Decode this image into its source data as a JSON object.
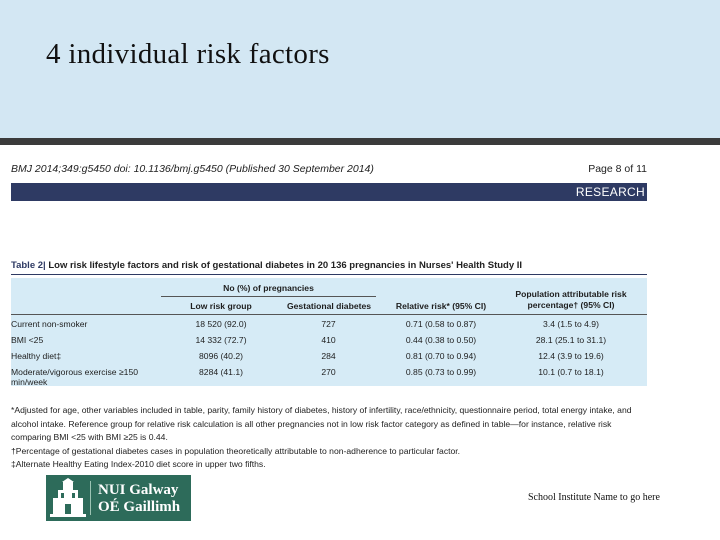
{
  "slide": {
    "title": "4 individual risk factors",
    "institute": "School Institute Name to go here"
  },
  "colors": {
    "title_band": "#d3e7f3",
    "table_band": "#d6ebf6",
    "research_bar": "#2e3a63",
    "logo_green": "#2d6b5a"
  },
  "doc": {
    "citation": "BMJ 2014;349:g5450 doi: 10.1136/bmj.g5450 (Published 30 September 2014)",
    "page": "Page 8 of 11",
    "section": "RESEARCH"
  },
  "table": {
    "label": "Table 2|",
    "title": " Low risk lifestyle factors and risk of gestational diabetes in 20 136 pregnancies in Nurses' Health Study II",
    "group_header": "No (%) of pregnancies",
    "columns": [
      "Low risk group",
      "Gestational diabetes",
      "Relative risk* (95% CI)",
      "Population attributable risk percentage† (95% CI)"
    ],
    "rows": [
      {
        "factor": "Current non-smoker",
        "low_risk": "18 520 (92.0)",
        "gd": "727",
        "rr": "0.71 (0.58 to 0.87)",
        "par": "3.4 (1.5 to 4.9)"
      },
      {
        "factor": "BMI <25",
        "low_risk": "14 332 (72.7)",
        "gd": "410",
        "rr": "0.44 (0.38 to 0.50)",
        "par": "28.1 (25.1 to 31.1)"
      },
      {
        "factor": "Healthy diet‡",
        "low_risk": "8096 (40.2)",
        "gd": "284",
        "rr": "0.81 (0.70 to 0.94)",
        "par": "12.4 (3.9 to 19.6)"
      },
      {
        "factor": "Moderate/vigorous exercise ≥150 min/week",
        "low_risk": "8284 (41.1)",
        "gd": "270",
        "rr": "0.85 (0.73 to 0.99)",
        "par": "10.1 (0.7 to 18.1)"
      }
    ],
    "footnotes": [
      "*Adjusted for age, other variables included in table, parity, family history of diabetes, history of infertility, race/ethnicity, questionnaire period, total energy intake, and alcohol intake. Reference group for relative risk calculation is all other pregnancies not in low risk factor category as defined in table—for instance, relative risk comparing BMI <25 with BMI ≥25 is 0.44.",
      "†Percentage of gestational diabetes cases in population theoretically attributable to non-adherence to particular factor.",
      "‡Alternate Healthy Eating Index-2010 diet score in upper two fifths."
    ]
  },
  "logo": {
    "line1": "NUI Galway",
    "line2": "OÉ Gaillimh",
    "icon": "university-tower-icon"
  }
}
